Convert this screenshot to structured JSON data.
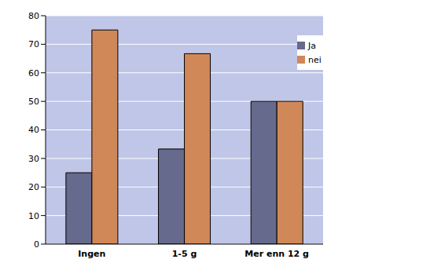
{
  "chart_data": {
    "type": "bar",
    "categories": [
      "Ingen",
      "1-5 g",
      "Mer enn 12 g"
    ],
    "series": [
      {
        "name": "Ja",
        "color": "#666a8c",
        "values": [
          25,
          33.3,
          50
        ]
      },
      {
        "name": "nei",
        "color": "#d08858",
        "values": [
          75,
          66.7,
          50
        ]
      }
    ],
    "ylim": [
      0,
      80
    ],
    "yticks": [
      0,
      10,
      20,
      30,
      40,
      50,
      60,
      70,
      80
    ],
    "grid": true,
    "legend": "top-right"
  }
}
